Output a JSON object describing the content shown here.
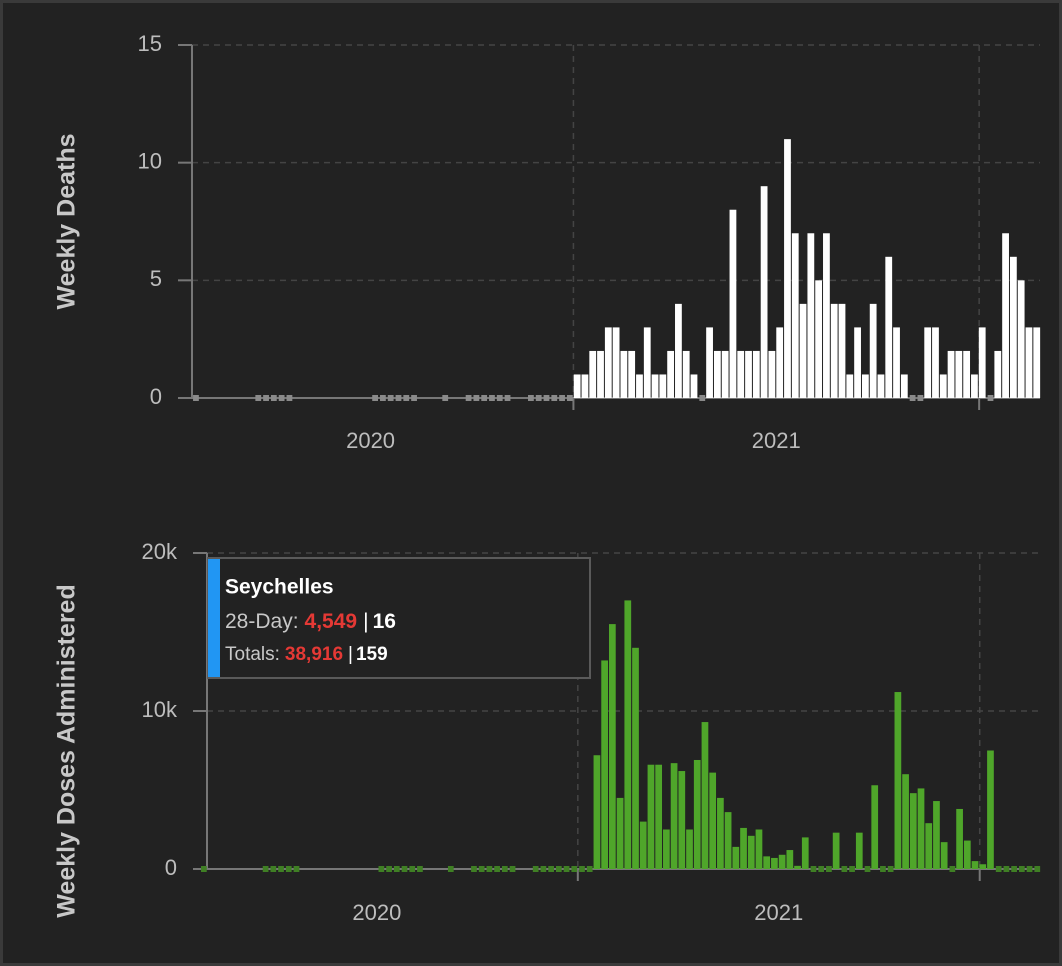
{
  "chart_data": [
    {
      "type": "bar",
      "y_label": "Weekly Deaths",
      "color": "#ffffff",
      "zero_color": "#8a8a8a",
      "xlim": [
        2020.05,
        2022.15
      ],
      "xticks": [
        {
          "value": 2020.5,
          "label": "2020"
        },
        {
          "value": 2021.5,
          "label": "2021"
        }
      ],
      "xgrid": [
        2021,
        2022
      ],
      "ylim": [
        0,
        15
      ],
      "yticks": [
        0,
        5,
        10,
        15
      ],
      "grid": true,
      "x": [
        2020.06,
        2020.0792,
        2020.0984,
        2020.1176,
        2020.1368,
        2020.156,
        2020.1752,
        2020.1944,
        2020.2136,
        2020.2328,
        2020.252,
        2020.2712,
        2020.2904,
        2020.3096,
        2020.3288,
        2020.348,
        2020.3672,
        2020.3864,
        2020.4056,
        2020.4248,
        2020.444,
        2020.4632,
        2020.4824,
        2020.5016,
        2020.5208,
        2020.54,
        2020.5592,
        2020.5784,
        2020.5976,
        2020.6168,
        2020.636,
        2020.6552,
        2020.6744,
        2020.6936,
        2020.7128,
        2020.732,
        2020.7512,
        2020.7704,
        2020.7896,
        2020.8088,
        2020.828,
        2020.8472,
        2020.8664,
        2020.8856,
        2020.9048,
        2020.924,
        2020.9432,
        2020.9624,
        2020.9816,
        2021.0008,
        2021.02,
        2021.0392,
        2021.0584,
        2021.0776,
        2021.0968,
        2021.116,
        2021.1352,
        2021.1544,
        2021.1736,
        2021.1928,
        2021.212,
        2021.2312,
        2021.2504,
        2021.2696,
        2021.2888,
        2021.308,
        2021.3272,
        2021.3464,
        2021.3656,
        2021.3848,
        2021.404,
        2021.4232,
        2021.4424,
        2021.4616,
        2021.4808,
        2021.5,
        2021.5192,
        2021.5384,
        2021.5576,
        2021.5768,
        2021.596,
        2021.6152,
        2021.6344,
        2021.6536,
        2021.6728,
        2021.692,
        2021.7112,
        2021.7304,
        2021.7496,
        2021.7688,
        2021.788,
        2021.8072,
        2021.8264,
        2021.8456,
        2021.8648,
        2021.884,
        2021.9032,
        2021.9224,
        2021.9416,
        2021.9608,
        2021.98,
        2021.9992,
        2022.0184,
        2022.0376,
        2022.0568,
        2022.076,
        2022.0952,
        2022.1144,
        2022.1336
      ],
      "values": [
        0,
        null,
        null,
        null,
        null,
        null,
        null,
        null,
        0,
        0,
        0,
        0,
        0,
        null,
        null,
        null,
        null,
        null,
        null,
        null,
        null,
        null,
        null,
        0,
        0,
        0,
        0,
        0,
        0,
        null,
        null,
        null,
        0,
        null,
        null,
        0,
        0,
        0,
        0,
        0,
        0,
        null,
        null,
        0,
        0,
        0,
        0,
        0,
        0,
        1,
        1,
        2,
        2,
        3,
        3,
        2,
        2,
        1,
        3,
        1,
        1,
        2,
        4,
        2,
        1,
        0,
        3,
        2,
        2,
        8,
        2,
        2,
        2,
        9,
        2,
        3,
        11,
        7,
        4,
        7,
        5,
        7,
        4,
        4,
        1,
        3,
        1,
        4,
        1,
        6,
        3,
        1,
        0,
        0,
        3,
        3,
        1,
        2,
        2,
        2,
        1,
        3,
        0,
        2,
        7,
        6,
        5,
        3,
        3
      ]
    },
    {
      "type": "bar",
      "y_label": "Weekly Doses Administered",
      "color": "#4fa62a",
      "zero_color": "#3f7f24",
      "xlim": [
        2020.05,
        2022.15
      ],
      "xticks": [
        {
          "value": 2020.5,
          "label": "2020"
        },
        {
          "value": 2021.5,
          "label": "2021"
        }
      ],
      "xgrid": [
        2021,
        2022
      ],
      "ylim": [
        0,
        20000
      ],
      "yticks": [
        0,
        {
          "value": 10000,
          "label": "10k"
        },
        {
          "value": 20000,
          "label": "20k"
        }
      ],
      "grid": true,
      "x": [
        2020.06,
        2020.0792,
        2020.0984,
        2020.1176,
        2020.1368,
        2020.156,
        2020.1752,
        2020.1944,
        2020.2136,
        2020.2328,
        2020.252,
        2020.2712,
        2020.2904,
        2020.3096,
        2020.3288,
        2020.348,
        2020.3672,
        2020.3864,
        2020.4056,
        2020.4248,
        2020.444,
        2020.4632,
        2020.4824,
        2020.5016,
        2020.5208,
        2020.54,
        2020.5592,
        2020.5784,
        2020.5976,
        2020.6168,
        2020.636,
        2020.6552,
        2020.6744,
        2020.6936,
        2020.7128,
        2020.732,
        2020.7512,
        2020.7704,
        2020.7896,
        2020.8088,
        2020.828,
        2020.8472,
        2020.8664,
        2020.8856,
        2020.9048,
        2020.924,
        2020.9432,
        2020.9624,
        2020.9816,
        2021.0008,
        2021.02,
        2021.0392,
        2021.0584,
        2021.0776,
        2021.0968,
        2021.116,
        2021.1352,
        2021.1544,
        2021.1736,
        2021.1928,
        2021.212,
        2021.2312,
        2021.2504,
        2021.2696,
        2021.2888,
        2021.308,
        2021.3272,
        2021.3464,
        2021.3656,
        2021.3848,
        2021.404,
        2021.4232,
        2021.4424,
        2021.4616,
        2021.4808,
        2021.5,
        2021.5192,
        2021.5384,
        2021.5576,
        2021.5768,
        2021.596,
        2021.6152,
        2021.6344,
        2021.6536,
        2021.6728,
        2021.692,
        2021.7112,
        2021.7304,
        2021.7496,
        2021.7688,
        2021.788,
        2021.8072,
        2021.8264,
        2021.8456,
        2021.8648,
        2021.884,
        2021.9032,
        2021.9224,
        2021.9416,
        2021.9608,
        2021.98,
        2021.9992,
        2022.0184,
        2022.0376,
        2022.0568,
        2022.076,
        2022.0952,
        2022.1144,
        2022.1336
      ],
      "values": [
        0,
        null,
        null,
        null,
        null,
        null,
        null,
        null,
        0,
        0,
        0,
        0,
        0,
        null,
        null,
        null,
        null,
        null,
        null,
        null,
        null,
        null,
        null,
        0,
        0,
        0,
        0,
        0,
        0,
        null,
        null,
        null,
        0,
        null,
        null,
        0,
        0,
        0,
        0,
        0,
        0,
        null,
        null,
        0,
        0,
        0,
        0,
        0,
        0,
        0,
        0,
        7200,
        13200,
        15500,
        4500,
        17000,
        14000,
        3000,
        6600,
        6600,
        2500,
        6700,
        6200,
        2500,
        6900,
        9300,
        6100,
        4500,
        3600,
        1400,
        2600,
        2100,
        2500,
        800,
        700,
        900,
        1200,
        200,
        2000,
        0,
        0,
        0,
        2300,
        0,
        0,
        2300,
        0,
        5300,
        0,
        0,
        11200,
        6000,
        4800,
        5100,
        2900,
        4300,
        1700,
        0,
        3800,
        1800,
        500,
        300,
        7500,
        0,
        0,
        0,
        0,
        0,
        0
      ]
    }
  ],
  "tooltip": {
    "title": "Seychelles",
    "separator": "|",
    "rows": [
      {
        "label": "28-Day:",
        "cases": "4,549",
        "deaths": "16"
      },
      {
        "label": "Totals:",
        "cases": "38,916",
        "deaths": "159"
      }
    ]
  }
}
